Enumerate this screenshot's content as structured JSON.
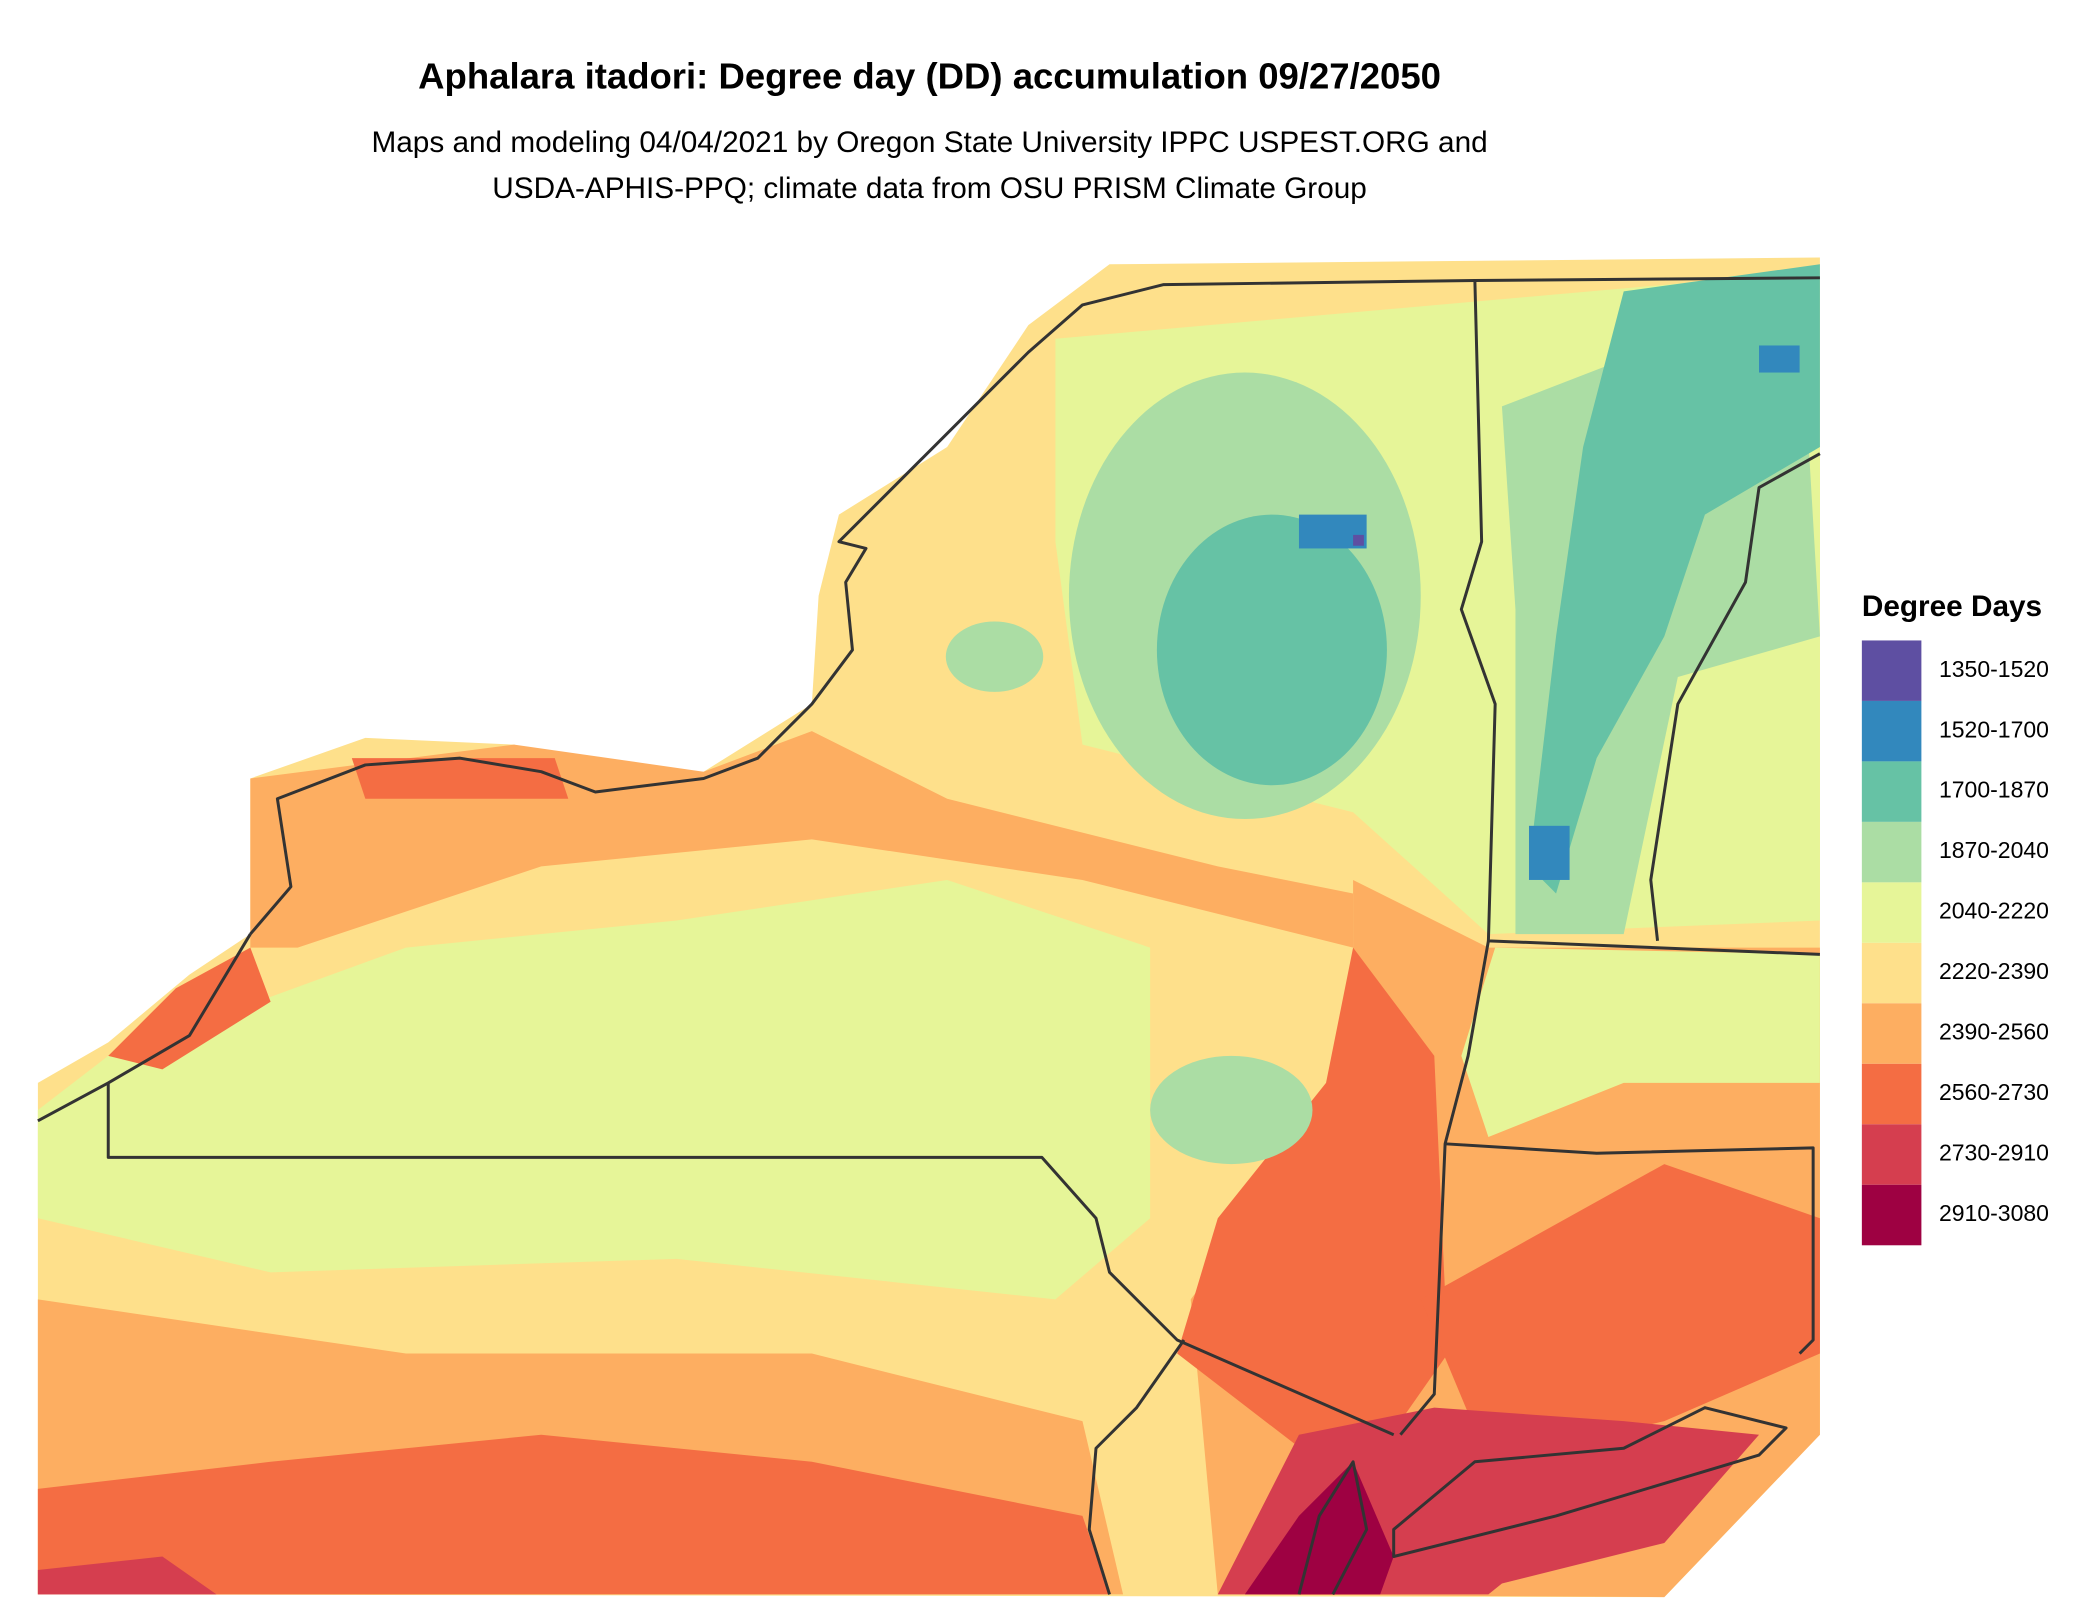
{
  "map": {
    "title": "Aphalara itadori: Degree day (DD) accumulation 09/27/2050",
    "subtitle": [
      "Maps and modeling 04/04/2021 by Oregon State University IPPC USPEST.ORG and",
      "USDA-APHIS-PPQ; climate data from OSU PRISM Climate Group"
    ],
    "legend": {
      "title": "Degree Days",
      "items": [
        {
          "label": "1350-1520",
          "color": "#5e4fa2"
        },
        {
          "label": "1520-1700",
          "color": "#3288bd"
        },
        {
          "label": "1700-1870",
          "color": "#66c2a5"
        },
        {
          "label": "1870-2040",
          "color": "#abdda4"
        },
        {
          "label": "2040-2220",
          "color": "#e6f598"
        },
        {
          "label": "2220-2390",
          "color": "#fee08b"
        },
        {
          "label": "2390-2560",
          "color": "#fdae61"
        },
        {
          "label": "2560-2730",
          "color": "#f46d43"
        },
        {
          "label": "2730-2910",
          "color": "#d53e4f"
        },
        {
          "label": "2910-3080",
          "color": "#9e0142"
        }
      ]
    }
  }
}
